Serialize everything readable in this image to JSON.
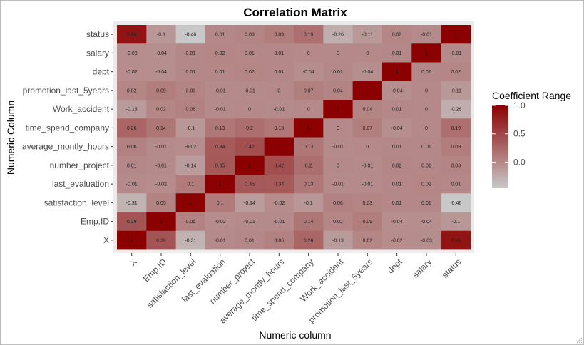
{
  "chart_data": {
    "type": "heatmap",
    "title": "Correlation Matrix",
    "xlabel": "Numeric column",
    "ylabel": "Numeric Column",
    "x_categories": [
      "X",
      "Emp.ID",
      "satisfaction_level",
      "last_evaluation",
      "number_project",
      "average_montly_hours",
      "time_spend_company",
      "Work_accident",
      "promotion_last_5years",
      "dept",
      "salary",
      "status"
    ],
    "y_categories_top_to_bottom": [
      "status",
      "salary",
      "dept",
      "promotion_last_5years",
      "Work_accident",
      "time_spend_company",
      "average_montly_hours",
      "number_project",
      "last_evaluation",
      "satisfaction_level",
      "Emp.ID",
      "X"
    ],
    "values": [
      [
        "0.86",
        "-0.1",
        "-0.46",
        "0.01",
        "0.03",
        "0.09",
        "0.19",
        "-0.26",
        "-0.11",
        "0.02",
        "-0.01",
        "1"
      ],
      [
        "-0.03",
        "-0.04",
        "0.01",
        "0.02",
        "0.01",
        "0.01",
        "0",
        "0",
        "0",
        "0.01",
        "1",
        "-0.01"
      ],
      [
        "-0.02",
        "-0.04",
        "0.01",
        "0.01",
        "0.02",
        "0.01",
        "-0.04",
        "0.01",
        "-0.04",
        "1",
        "0.01",
        "0.02"
      ],
      [
        "0.02",
        "0.09",
        "0.03",
        "-0.01",
        "-0.01",
        "0",
        "0.07",
        "0.04",
        "1",
        "-0.04",
        "0",
        "-0.11"
      ],
      [
        "-0.13",
        "0.02",
        "0.06",
        "-0.01",
        "0",
        "-0.01",
        "0",
        "1",
        "0.04",
        "0.01",
        "0",
        "-0.26"
      ],
      [
        "0.26",
        "0.14",
        "-0.1",
        "0.13",
        "0.2",
        "0.13",
        "1",
        "0",
        "0.07",
        "-0.04",
        "0",
        "0.19"
      ],
      [
        "0.06",
        "-0.01",
        "-0.02",
        "0.34",
        "0.42",
        "1",
        "0.13",
        "-0.01",
        "0",
        "0.01",
        "0.01",
        "0.09"
      ],
      [
        "0.01",
        "-0.01",
        "-0.14",
        "0.35",
        "1",
        "0.42",
        "0.2",
        "0",
        "-0.01",
        "0.02",
        "0.01",
        "0.03"
      ],
      [
        "-0.01",
        "-0.02",
        "0.1",
        "1",
        "0.35",
        "0.34",
        "0.13",
        "-0.01",
        "-0.01",
        "0.01",
        "0.02",
        "0.01"
      ],
      [
        "-0.31",
        "0.05",
        "1",
        "0.1",
        "-0.14",
        "-0.02",
        "-0.1",
        "0.06",
        "0.03",
        "0.01",
        "0.01",
        "-0.46"
      ],
      [
        "0.39",
        "1",
        "0.05",
        "-0.02",
        "-0.01",
        "-0.01",
        "0.14",
        "0.02",
        "0.09",
        "-0.04",
        "-0.04",
        "-0.1"
      ],
      [
        "1",
        "0.39",
        "-0.31",
        "-0.01",
        "0.01",
        "0.06",
        "0.26",
        "-0.13",
        "0.02",
        "-0.02",
        "-0.03",
        "0.86"
      ]
    ],
    "legend": {
      "title": "Coefficient Range",
      "ticks": [
        "1.0",
        "0.5",
        "0.0"
      ],
      "range": [
        -0.46,
        1
      ],
      "placement": "right"
    },
    "colors": {
      "low": "#c8c8c8",
      "high": "#8b0000",
      "panel_background": "#ebebeb"
    }
  }
}
